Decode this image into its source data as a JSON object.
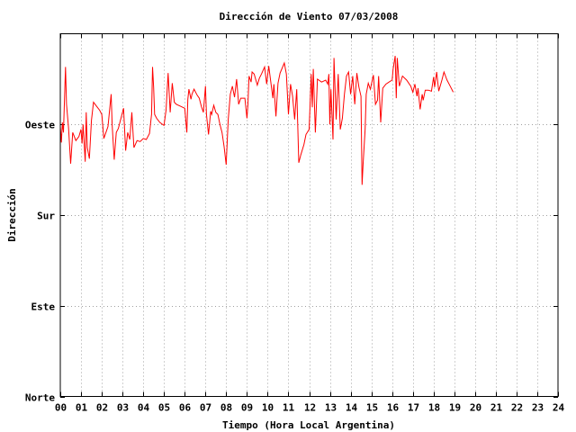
{
  "chart_data": {
    "type": "line",
    "title": "Dirección de Viento 07/03/2008",
    "xlabel": "Tiempo (Hora Local Argentina)",
    "ylabel": "Dirección",
    "xlim": [
      0,
      24
    ],
    "ylim": [
      0,
      360
    ],
    "x_ticks": [
      "00",
      "01",
      "02",
      "03",
      "04",
      "05",
      "06",
      "07",
      "08",
      "09",
      "10",
      "11",
      "12",
      "13",
      "14",
      "15",
      "16",
      "17",
      "18",
      "19",
      "20",
      "21",
      "22",
      "23",
      "24"
    ],
    "y_ticks": [
      {
        "value": 0,
        "label": "Norte"
      },
      {
        "value": 90,
        "label": "Este"
      },
      {
        "value": 180,
        "label": "Sur"
      },
      {
        "value": 270,
        "label": "Oeste"
      }
    ],
    "grid": true,
    "line_color": "#ff0000",
    "series": [
      {
        "values": [
          [
            0.0,
            268
          ],
          [
            0.05,
            252
          ],
          [
            0.1,
            272
          ],
          [
            0.15,
            262
          ],
          [
            0.25,
            327
          ],
          [
            0.3,
            290
          ],
          [
            0.4,
            266
          ],
          [
            0.5,
            231
          ],
          [
            0.6,
            262
          ],
          [
            0.75,
            254
          ],
          [
            0.9,
            258
          ],
          [
            1.0,
            265
          ],
          [
            1.05,
            251
          ],
          [
            1.1,
            270
          ],
          [
            1.2,
            233
          ],
          [
            1.25,
            282
          ],
          [
            1.3,
            247
          ],
          [
            1.4,
            236
          ],
          [
            1.5,
            274
          ],
          [
            1.6,
            292
          ],
          [
            1.75,
            288
          ],
          [
            1.9,
            284
          ],
          [
            2.0,
            280
          ],
          [
            2.1,
            256
          ],
          [
            2.2,
            262
          ],
          [
            2.3,
            268
          ],
          [
            2.45,
            300
          ],
          [
            2.5,
            270
          ],
          [
            2.6,
            235
          ],
          [
            2.7,
            262
          ],
          [
            2.8,
            266
          ],
          [
            2.9,
            274
          ],
          [
            3.05,
            286
          ],
          [
            3.15,
            244
          ],
          [
            3.25,
            262
          ],
          [
            3.35,
            255
          ],
          [
            3.45,
            282
          ],
          [
            3.5,
            265
          ],
          [
            3.55,
            247
          ],
          [
            3.7,
            254
          ],
          [
            3.85,
            253
          ],
          [
            4.0,
            256
          ],
          [
            4.15,
            255
          ],
          [
            4.3,
            261
          ],
          [
            4.4,
            280
          ],
          [
            4.45,
            327
          ],
          [
            4.5,
            307
          ],
          [
            4.55,
            280
          ],
          [
            4.65,
            276
          ],
          [
            4.8,
            272
          ],
          [
            5.0,
            269
          ],
          [
            5.1,
            284
          ],
          [
            5.2,
            321
          ],
          [
            5.3,
            282
          ],
          [
            5.4,
            311
          ],
          [
            5.5,
            292
          ],
          [
            5.6,
            290
          ],
          [
            5.8,
            288
          ],
          [
            6.0,
            286
          ],
          [
            6.1,
            262
          ],
          [
            6.15,
            295
          ],
          [
            6.2,
            305
          ],
          [
            6.3,
            295
          ],
          [
            6.35,
            300
          ],
          [
            6.45,
            305
          ],
          [
            6.6,
            299
          ],
          [
            6.7,
            296
          ],
          [
            6.8,
            288
          ],
          [
            6.9,
            282
          ],
          [
            7.0,
            308
          ],
          [
            7.05,
            280
          ],
          [
            7.15,
            260
          ],
          [
            7.25,
            283
          ],
          [
            7.3,
            280
          ],
          [
            7.4,
            289
          ],
          [
            7.5,
            282
          ],
          [
            7.6,
            280
          ],
          [
            7.7,
            270
          ],
          [
            7.8,
            262
          ],
          [
            7.9,
            248
          ],
          [
            8.0,
            230
          ],
          [
            8.1,
            275
          ],
          [
            8.2,
            300
          ],
          [
            8.3,
            308
          ],
          [
            8.4,
            297
          ],
          [
            8.5,
            315
          ],
          [
            8.6,
            290
          ],
          [
            8.7,
            296
          ],
          [
            8.9,
            296
          ],
          [
            9.0,
            276
          ],
          [
            9.05,
            290
          ],
          [
            9.1,
            318
          ],
          [
            9.2,
            312
          ],
          [
            9.25,
            322
          ],
          [
            9.35,
            320
          ],
          [
            9.5,
            309
          ],
          [
            9.6,
            316
          ],
          [
            9.7,
            320
          ],
          [
            9.85,
            327
          ],
          [
            9.95,
            310
          ],
          [
            10.05,
            328
          ],
          [
            10.15,
            312
          ],
          [
            10.25,
            296
          ],
          [
            10.3,
            310
          ],
          [
            10.4,
            278
          ],
          [
            10.5,
            311
          ],
          [
            10.6,
            321
          ],
          [
            10.8,
            331
          ],
          [
            10.9,
            320
          ],
          [
            11.0,
            280
          ],
          [
            11.1,
            310
          ],
          [
            11.2,
            298
          ],
          [
            11.3,
            275
          ],
          [
            11.4,
            305
          ],
          [
            11.5,
            232
          ],
          [
            11.6,
            240
          ],
          [
            11.75,
            250
          ],
          [
            11.85,
            260
          ],
          [
            12.0,
            265
          ],
          [
            12.1,
            320
          ],
          [
            12.15,
            287
          ],
          [
            12.2,
            325
          ],
          [
            12.3,
            262
          ],
          [
            12.4,
            315
          ],
          [
            12.6,
            312
          ],
          [
            12.8,
            314
          ],
          [
            12.9,
            310
          ],
          [
            12.95,
            320
          ],
          [
            13.0,
            270
          ],
          [
            13.05,
            305
          ],
          [
            13.15,
            255
          ],
          [
            13.2,
            336
          ],
          [
            13.3,
            275
          ],
          [
            13.4,
            320
          ],
          [
            13.5,
            265
          ],
          [
            13.6,
            276
          ],
          [
            13.7,
            300
          ],
          [
            13.8,
            318
          ],
          [
            13.9,
            322
          ],
          [
            14.0,
            300
          ],
          [
            14.1,
            318
          ],
          [
            14.2,
            290
          ],
          [
            14.3,
            321
          ],
          [
            14.4,
            307
          ],
          [
            14.5,
            298
          ],
          [
            14.55,
            210
          ],
          [
            14.6,
            230
          ],
          [
            14.7,
            265
          ],
          [
            14.75,
            300
          ],
          [
            14.85,
            311
          ],
          [
            14.95,
            305
          ],
          [
            15.1,
            319
          ],
          [
            15.2,
            290
          ],
          [
            15.3,
            294
          ],
          [
            15.35,
            318
          ],
          [
            15.45,
            272
          ],
          [
            15.55,
            306
          ],
          [
            15.7,
            310
          ],
          [
            15.85,
            312
          ],
          [
            16.0,
            314
          ],
          [
            16.05,
            325
          ],
          [
            16.15,
            338
          ],
          [
            16.2,
            296
          ],
          [
            16.25,
            336
          ],
          [
            16.35,
            308
          ],
          [
            16.5,
            318
          ],
          [
            16.7,
            314
          ],
          [
            16.9,
            308
          ],
          [
            17.0,
            302
          ],
          [
            17.1,
            310
          ],
          [
            17.2,
            298
          ],
          [
            17.25,
            306
          ],
          [
            17.35,
            285
          ],
          [
            17.45,
            300
          ],
          [
            17.5,
            294
          ],
          [
            17.6,
            304
          ],
          [
            17.75,
            304
          ],
          [
            17.9,
            303
          ],
          [
            18.0,
            317
          ],
          [
            18.05,
            307
          ],
          [
            18.15,
            322
          ],
          [
            18.25,
            303
          ],
          [
            18.4,
            314
          ],
          [
            18.5,
            322
          ],
          [
            18.65,
            314
          ],
          [
            18.8,
            308
          ],
          [
            18.95,
            302
          ]
        ]
      }
    ]
  }
}
